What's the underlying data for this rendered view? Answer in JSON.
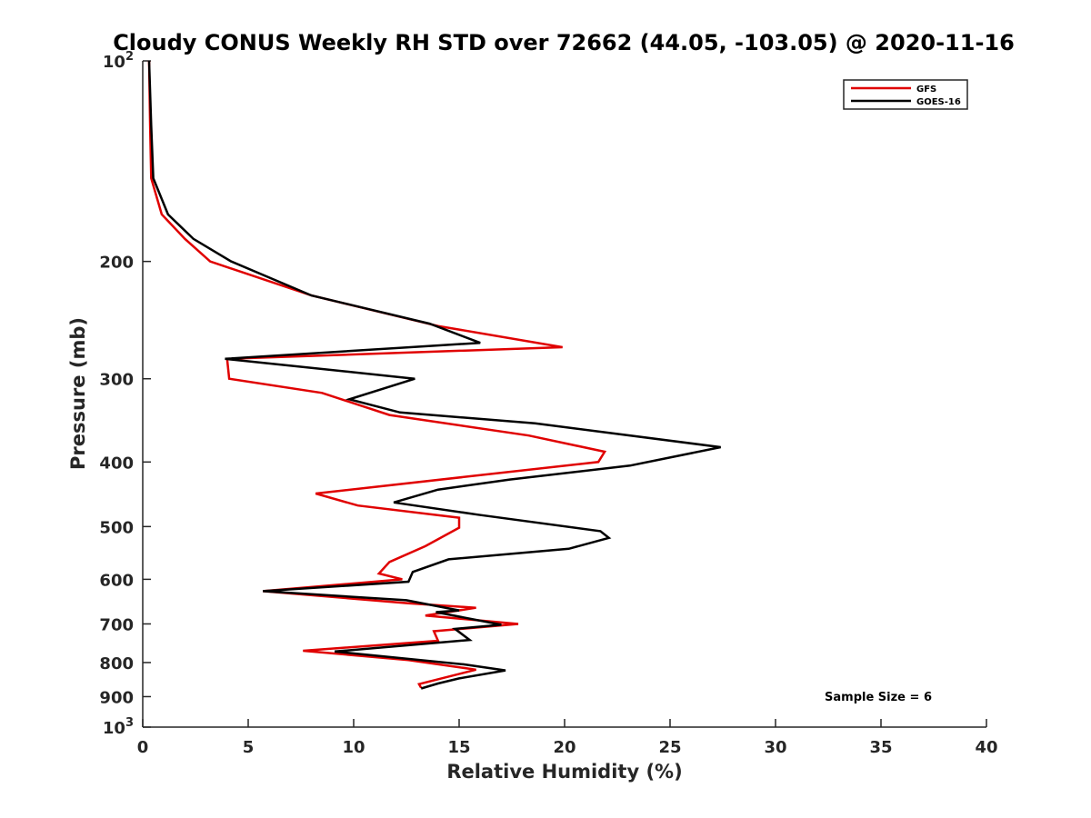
{
  "chart_data": {
    "type": "line",
    "title": "Cloudy CONUS Weekly RH STD over 72662 (44.05, -103.05) @ 2020-11-16",
    "xlabel": "Relative Humidity (%)",
    "ylabel": "Pressure (mb)",
    "xlim": [
      0,
      40
    ],
    "ylim": [
      100,
      1000
    ],
    "y_scale": "log",
    "y_reversed": true,
    "grid": false,
    "legend_position": "top-right",
    "x_ticks": [
      0,
      5,
      10,
      15,
      20,
      25,
      30,
      35,
      40
    ],
    "y_ticks": [
      {
        "value": 100,
        "base": "10",
        "exp": "2"
      },
      {
        "value": 200,
        "label": "200"
      },
      {
        "value": 300,
        "label": "300"
      },
      {
        "value": 400,
        "label": "400"
      },
      {
        "value": 500,
        "label": "500"
      },
      {
        "value": 600,
        "label": "600"
      },
      {
        "value": 700,
        "label": "700"
      },
      {
        "value": 800,
        "label": "800"
      },
      {
        "value": 900,
        "label": "900"
      },
      {
        "value": 1000,
        "base": "10",
        "exp": "3"
      }
    ],
    "series": [
      {
        "name": "GFS",
        "color": "#e00000",
        "points": [
          [
            0.3,
            100
          ],
          [
            0.35,
            125
          ],
          [
            0.4,
            150
          ],
          [
            0.9,
            170
          ],
          [
            2.0,
            185
          ],
          [
            3.2,
            200
          ],
          [
            8.0,
            225
          ],
          [
            14.0,
            250
          ],
          [
            19.9,
            269
          ],
          [
            4.0,
            280
          ],
          [
            4.1,
            300
          ],
          [
            8.5,
            315
          ],
          [
            11.7,
            340
          ],
          [
            18.3,
            365
          ],
          [
            21.9,
            386
          ],
          [
            21.6,
            400
          ],
          [
            8.2,
            446
          ],
          [
            10.2,
            465
          ],
          [
            15.0,
            485
          ],
          [
            15.0,
            502
          ],
          [
            13.4,
            535
          ],
          [
            11.7,
            565
          ],
          [
            11.2,
            588
          ],
          [
            12.3,
            600
          ],
          [
            5.7,
            625
          ],
          [
            12.6,
            652
          ],
          [
            15.8,
            662
          ],
          [
            13.4,
            680
          ],
          [
            17.8,
            700
          ],
          [
            13.8,
            718
          ],
          [
            14.0,
            742
          ],
          [
            7.6,
            768
          ],
          [
            12.6,
            793
          ],
          [
            15.8,
            820
          ],
          [
            13.1,
            862
          ],
          [
            13.2,
            873
          ]
        ]
      },
      {
        "name": "GOES-16",
        "color": "#000000",
        "points": [
          [
            0.3,
            100
          ],
          [
            0.4,
            125
          ],
          [
            0.5,
            150
          ],
          [
            1.2,
            170
          ],
          [
            2.4,
            185
          ],
          [
            4.2,
            200
          ],
          [
            8.0,
            225
          ],
          [
            13.6,
            248
          ],
          [
            16.0,
            265
          ],
          [
            3.9,
            280
          ],
          [
            12.9,
            300
          ],
          [
            9.8,
            322
          ],
          [
            12.2,
            337
          ],
          [
            18.6,
            350
          ],
          [
            27.4,
            380
          ],
          [
            23.1,
            405
          ],
          [
            17.4,
            425
          ],
          [
            14.0,
            440
          ],
          [
            11.9,
            460
          ],
          [
            15.9,
            480
          ],
          [
            21.7,
            508
          ],
          [
            22.1,
            520
          ],
          [
            20.2,
            540
          ],
          [
            14.5,
            560
          ],
          [
            12.8,
            585
          ],
          [
            12.6,
            605
          ],
          [
            5.7,
            625
          ],
          [
            12.5,
            645
          ],
          [
            15.0,
            668
          ],
          [
            13.9,
            672
          ],
          [
            17.0,
            702
          ],
          [
            14.8,
            712
          ],
          [
            15.5,
            740
          ],
          [
            9.1,
            770
          ],
          [
            15.2,
            805
          ],
          [
            17.2,
            822
          ],
          [
            15.0,
            845
          ],
          [
            14.0,
            860
          ],
          [
            13.2,
            875
          ]
        ]
      }
    ],
    "annotations": [
      {
        "text": "Sample Size = 6"
      }
    ]
  }
}
